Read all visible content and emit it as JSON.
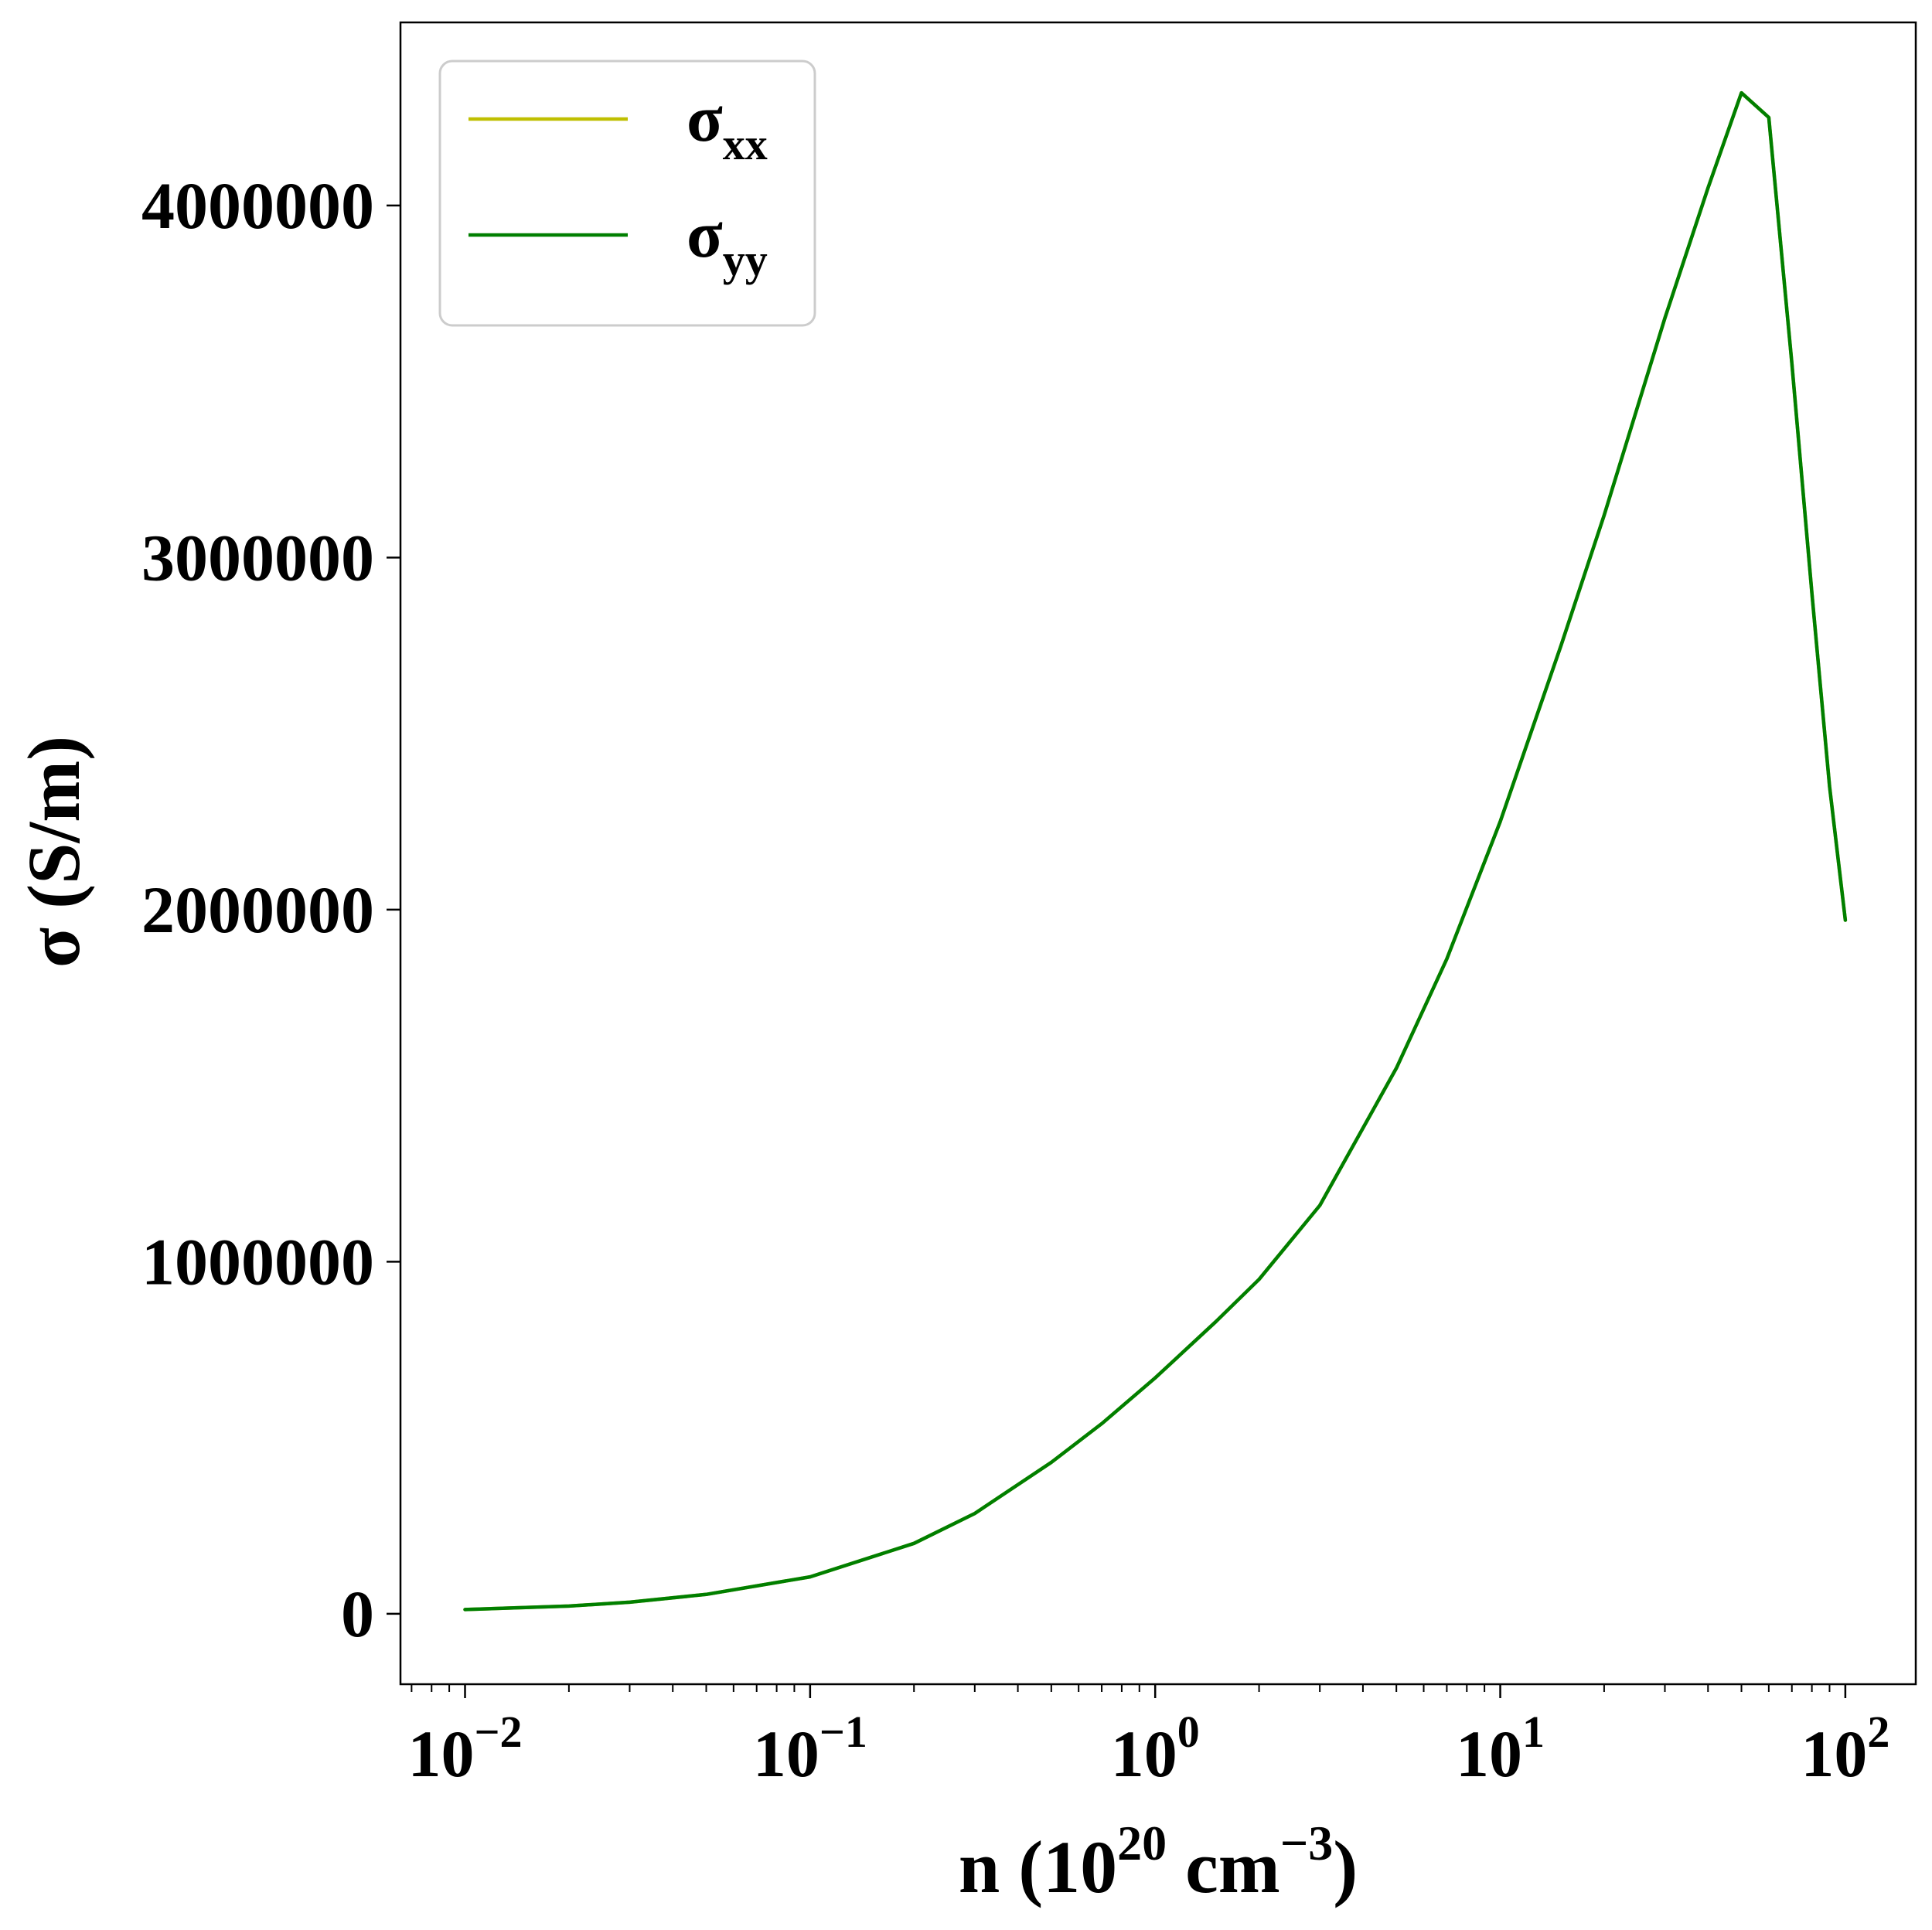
{
  "chart_data": {
    "type": "line",
    "xscale": "log",
    "xlim": [
      0.0065,
      160
    ],
    "ylim": [
      -200000,
      4520000
    ],
    "grid": false,
    "legend_placement": "top-left",
    "xlabel": {
      "prefix": "n (10",
      "sup1": "20",
      "middle": " cm",
      "sup2": "−3",
      "suffix": ")"
    },
    "ylabel": "σ (S/m)",
    "x_ticks": [
      {
        "value": 0.01,
        "base": "10",
        "exp": "−2"
      },
      {
        "value": 0.1,
        "base": "10",
        "exp": "−1"
      },
      {
        "value": 1,
        "base": "10",
        "exp": "0"
      },
      {
        "value": 10,
        "base": "10",
        "exp": "1"
      },
      {
        "value": 100,
        "base": "10",
        "exp": "2"
      }
    ],
    "y_ticks": [
      {
        "value": 0,
        "label": "0"
      },
      {
        "value": 1000000,
        "label": "1000000"
      },
      {
        "value": 2000000,
        "label": "2000000"
      },
      {
        "value": 3000000,
        "label": "3000000"
      },
      {
        "value": 4000000,
        "label": "4000000"
      }
    ],
    "series": [
      {
        "name": "σxx",
        "legend_main": "σ",
        "legend_sub": "xx",
        "color": "#bfbf00",
        "x": [
          0.01,
          0.02,
          0.03,
          0.05,
          0.1,
          0.2,
          0.3,
          0.5,
          0.7,
          1,
          1.5,
          2,
          3,
          5,
          7,
          10,
          15,
          20,
          30,
          40,
          50,
          60,
          70,
          80,
          90,
          100
        ],
        "y": [
          12000,
          22000,
          33000,
          55000,
          105000,
          200000,
          285000,
          430000,
          540000,
          670000,
          830000,
          950000,
          1160000,
          1550000,
          1860000,
          2250000,
          2750000,
          3120000,
          3680000,
          4050000,
          4320000,
          4250000,
          3550000,
          2900000,
          2350000,
          1970000
        ]
      },
      {
        "name": "σyy",
        "legend_main": "σ",
        "legend_sub": "yy",
        "color": "#007f00",
        "x": [
          0.01,
          0.02,
          0.03,
          0.05,
          0.1,
          0.2,
          0.3,
          0.5,
          0.7,
          1,
          1.5,
          2,
          3,
          5,
          7,
          10,
          15,
          20,
          30,
          40,
          50,
          60,
          70,
          80,
          90,
          100
        ],
        "y": [
          12000,
          22000,
          33000,
          55000,
          105000,
          200000,
          285000,
          430000,
          540000,
          670000,
          830000,
          950000,
          1160000,
          1550000,
          1860000,
          2250000,
          2750000,
          3120000,
          3680000,
          4050000,
          4320000,
          4250000,
          3550000,
          2900000,
          2350000,
          1970000
        ]
      }
    ]
  }
}
